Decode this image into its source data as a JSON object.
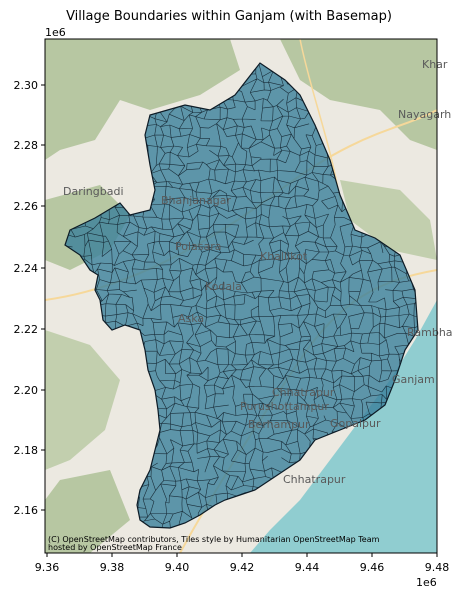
{
  "title": "Village Boundaries within Ganjam (with Basemap)",
  "y_offset_label": "1e6",
  "x_offset_label": "1e6",
  "y_ticks": [
    "2.30",
    "2.28",
    "2.26",
    "2.24",
    "2.22",
    "2.20",
    "2.18",
    "2.16"
  ],
  "x_ticks": [
    "9.36",
    "9.38",
    "9.40",
    "9.42",
    "9.44",
    "9.46",
    "9.48"
  ],
  "attribution_line1": "(C) OpenStreetMap contributors, Tiles style by Humanitarian OpenStreetMap Team",
  "attribution_line2": "hosted by OpenStreetMap France",
  "place_labels": [
    "Daringbadi",
    "Bhanjanagar",
    "Nayagarh",
    "Khar",
    "Aska",
    "Berhampur",
    "Gopalpur",
    "Chhatrapur",
    "Rambha",
    "Ganjam",
    "Purushottampur",
    "Kodala",
    "Khallikot",
    "Polasara"
  ],
  "colors": {
    "forest": "#b7c7a2",
    "land": "#ece9e1",
    "sea": "#90cdd0",
    "boundary_fill": "#3a7f9b",
    "boundary_edge": "#0d1b26",
    "road": "#f6d89a"
  }
}
